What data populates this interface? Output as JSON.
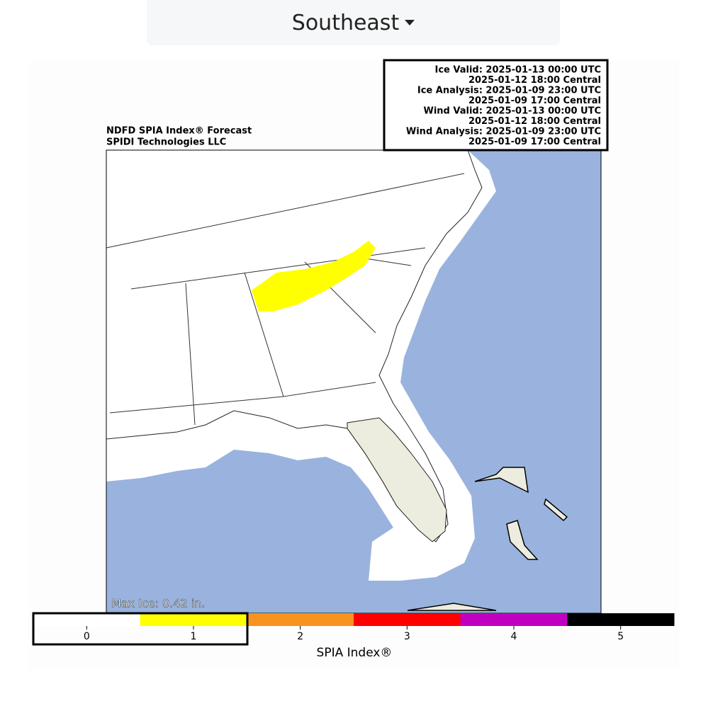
{
  "dropdown": {
    "label": "Southeast"
  },
  "info_box": {
    "lines": [
      "Ice Valid: 2025-01-13 00:00 UTC",
      "2025-01-12 18:00 Central",
      "Ice Analysis: 2025-01-09 23:00 UTC",
      "2025-01-09 17:00 Central",
      "Wind Valid: 2025-01-13 00:00 UTC",
      "2025-01-12 18:00 Central",
      "Wind Analysis: 2025-01-09 23:00 UTC",
      "2025-01-09 17:00 Central"
    ]
  },
  "map": {
    "title": "NDFD SPIA Index® Forecast",
    "subtitle": "SPIDI Technologies LLC",
    "max_ice": "Max Ice: 0.42 in."
  },
  "colorbar": {
    "label": "SPIA Index®",
    "ticks": [
      0,
      1,
      2,
      3,
      4,
      5
    ],
    "colors": [
      "#ffffff",
      "#ffff00",
      "#f7931e",
      "#ff0000",
      "#c000c0",
      "#000000"
    ]
  }
}
